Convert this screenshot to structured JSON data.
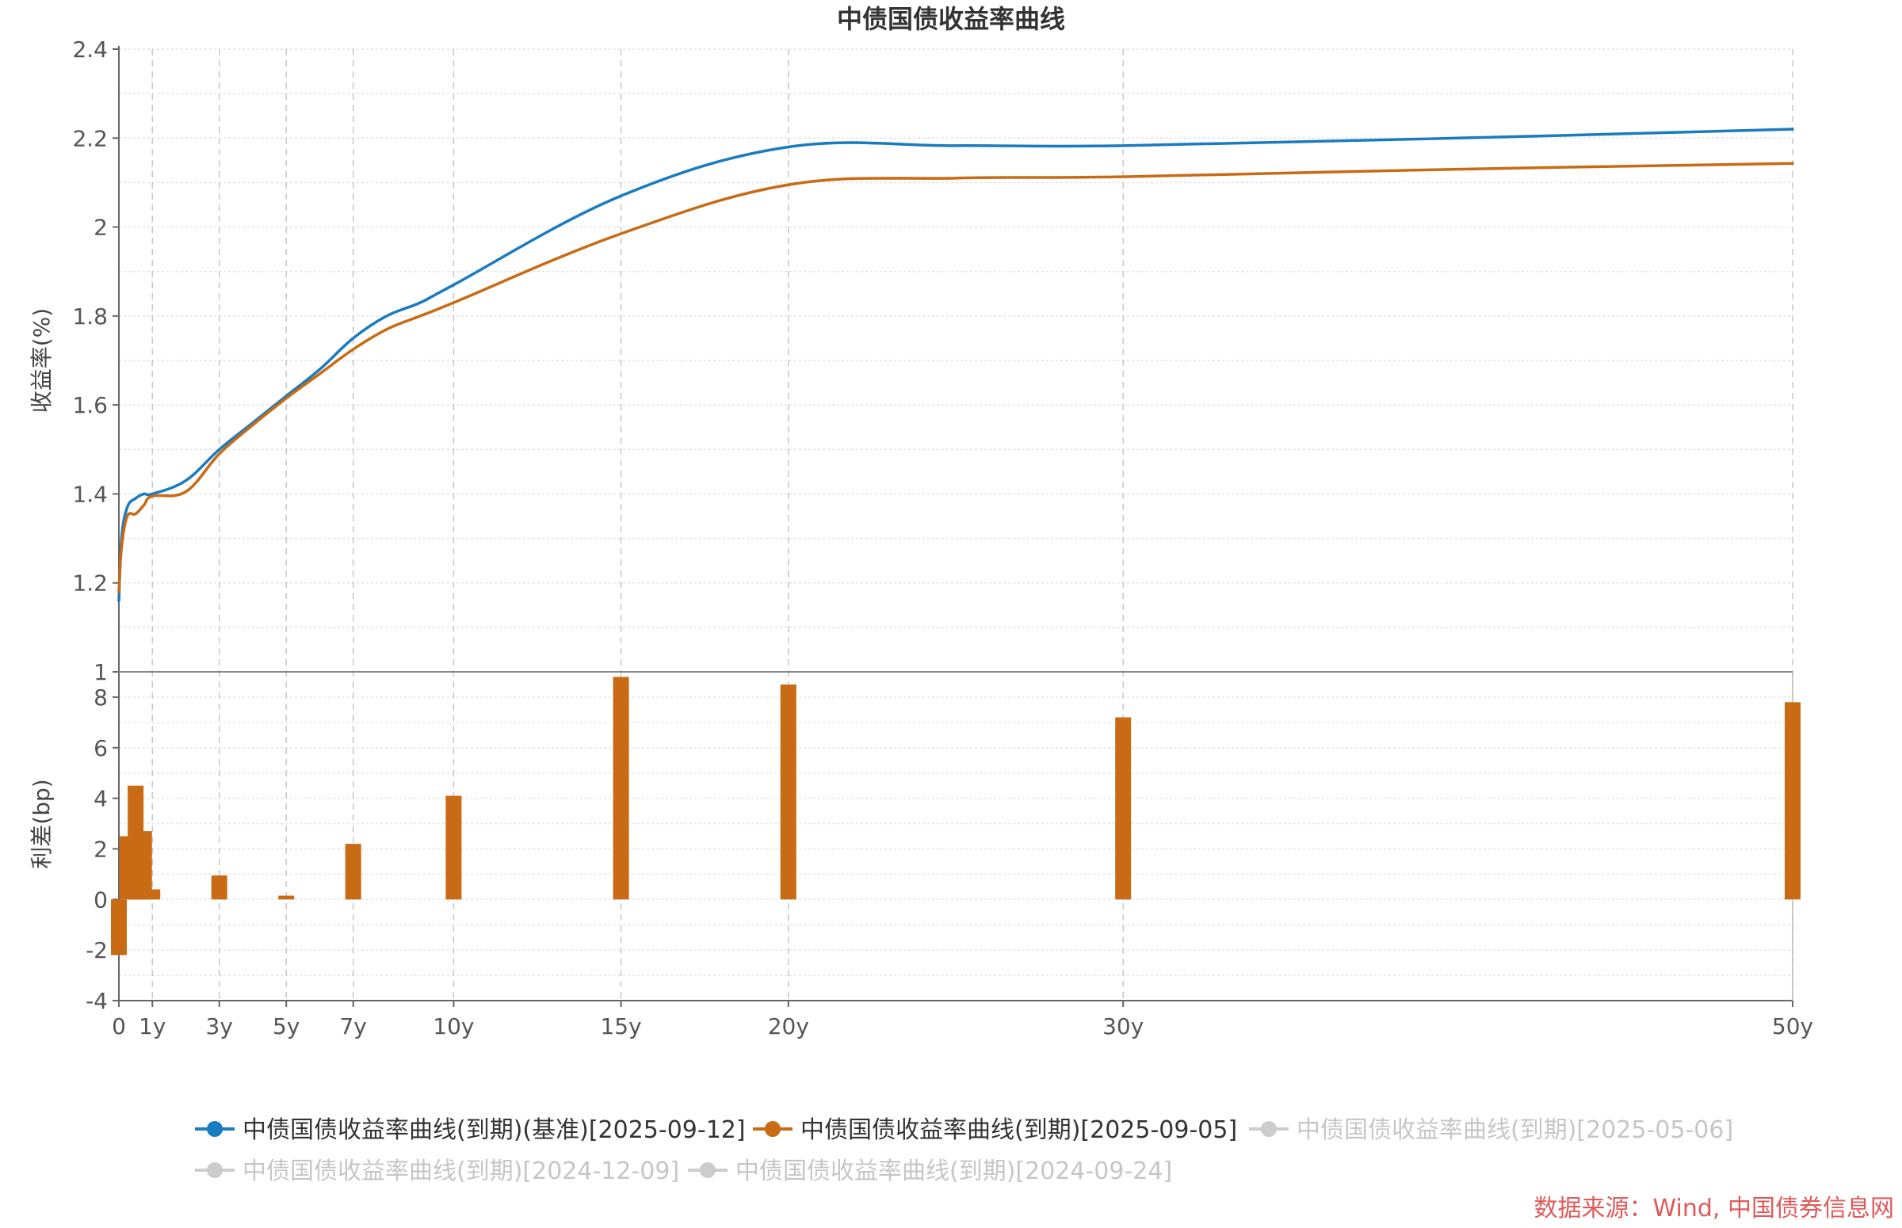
{
  "chart_data": {
    "type": "line+bar",
    "title": "中债国债收益率曲线",
    "x_axis": {
      "ticks": [
        {
          "value": 0,
          "label": "0"
        },
        {
          "value": 1,
          "label": "1y"
        },
        {
          "value": 3,
          "label": "3y"
        },
        {
          "value": 5,
          "label": "5y"
        },
        {
          "value": 7,
          "label": "7y"
        },
        {
          "value": 10,
          "label": "10y"
        },
        {
          "value": 15,
          "label": "15y"
        },
        {
          "value": 20,
          "label": "20y"
        },
        {
          "value": 30,
          "label": "30y"
        },
        {
          "value": 50,
          "label": "50y"
        }
      ],
      "xlim": [
        0,
        50
      ]
    },
    "top_panel": {
      "type": "line",
      "ylabel": "收益率(%)",
      "ylim": [
        1,
        2.4
      ],
      "yticks": [
        {
          "value": 1,
          "label": "1"
        },
        {
          "value": 1.2,
          "label": "1.2"
        },
        {
          "value": 1.4,
          "label": "1.4"
        },
        {
          "value": 1.6,
          "label": "1.6"
        },
        {
          "value": 1.8,
          "label": "1.8"
        },
        {
          "value": 2,
          "label": "2"
        },
        {
          "value": 2.2,
          "label": "2.2"
        },
        {
          "value": 2.4,
          "label": "2.4"
        }
      ],
      "series": [
        {
          "name": "中债国债收益率曲线(到期)(基准)[2025-09-12]",
          "color": "#1a7bbf",
          "x": [
            0,
            0.08,
            0.25,
            0.5,
            0.75,
            1,
            2,
            3,
            4,
            5,
            6,
            7,
            8,
            9,
            10,
            15,
            20,
            25,
            30,
            40,
            50
          ],
          "y": [
            1.16,
            1.3,
            1.37,
            1.39,
            1.4,
            1.4,
            1.43,
            1.5,
            1.56,
            1.62,
            1.68,
            1.75,
            1.8,
            1.83,
            1.87,
            2.07,
            2.18,
            2.183,
            2.183,
            2.2,
            2.22
          ]
        },
        {
          "name": "中债国债收益率曲线(到期)[2025-09-05]",
          "color": "#c96a14",
          "x": [
            0,
            0.08,
            0.25,
            0.5,
            0.75,
            1,
            2,
            3,
            4,
            5,
            6,
            7,
            8,
            9,
            10,
            15,
            20,
            25,
            30,
            40,
            50
          ],
          "y": [
            1.18,
            1.28,
            1.35,
            1.355,
            1.375,
            1.395,
            1.405,
            1.49,
            1.555,
            1.615,
            1.67,
            1.725,
            1.77,
            1.8,
            1.83,
            1.985,
            2.095,
            2.11,
            2.113,
            2.13,
            2.143
          ]
        }
      ]
    },
    "bottom_panel": {
      "type": "bar",
      "ylabel": "利差(bp)",
      "ylim": [
        -4,
        9
      ],
      "yticks": [
        {
          "value": -4,
          "label": "-4"
        },
        {
          "value": -2,
          "label": "-2"
        },
        {
          "value": 0,
          "label": "0"
        },
        {
          "value": 2,
          "label": "2"
        },
        {
          "value": 4,
          "label": "4"
        },
        {
          "value": 6,
          "label": "6"
        },
        {
          "value": 8,
          "label": "8"
        }
      ],
      "color": "#c96a14",
      "bars": [
        {
          "x": 0,
          "value": -2.2
        },
        {
          "x": 0.25,
          "value": 2.5
        },
        {
          "x": 0.5,
          "value": 4.5
        },
        {
          "x": 0.75,
          "value": 2.7
        },
        {
          "x": 1,
          "value": 0.4
        },
        {
          "x": 3,
          "value": 0.95
        },
        {
          "x": 5,
          "value": 0.15
        },
        {
          "x": 7,
          "value": 2.2
        },
        {
          "x": 10,
          "value": 4.1
        },
        {
          "x": 15,
          "value": 8.8
        },
        {
          "x": 20,
          "value": 8.5
        },
        {
          "x": 30,
          "value": 7.2
        },
        {
          "x": 50,
          "value": 7.8
        }
      ]
    },
    "legend": {
      "placement": "bottom",
      "items": [
        {
          "label": "中债国债收益率曲线(到期)(基准)[2025-09-12]",
          "color": "#1a7bbf",
          "active": true
        },
        {
          "label": "中债国债收益率曲线(到期)[2025-09-05]",
          "color": "#c96a14",
          "active": true
        },
        {
          "label": "中债国债收益率曲线(到期)[2025-05-06]",
          "color": "#cccccc",
          "active": false
        },
        {
          "label": "中债国债收益率曲线(到期)[2024-12-09]",
          "color": "#cccccc",
          "active": false
        },
        {
          "label": "中债国债收益率曲线(到期)[2024-09-24]",
          "color": "#cccccc",
          "active": false
        }
      ]
    },
    "source": "数据来源：Wind, 中国债券信息网"
  }
}
